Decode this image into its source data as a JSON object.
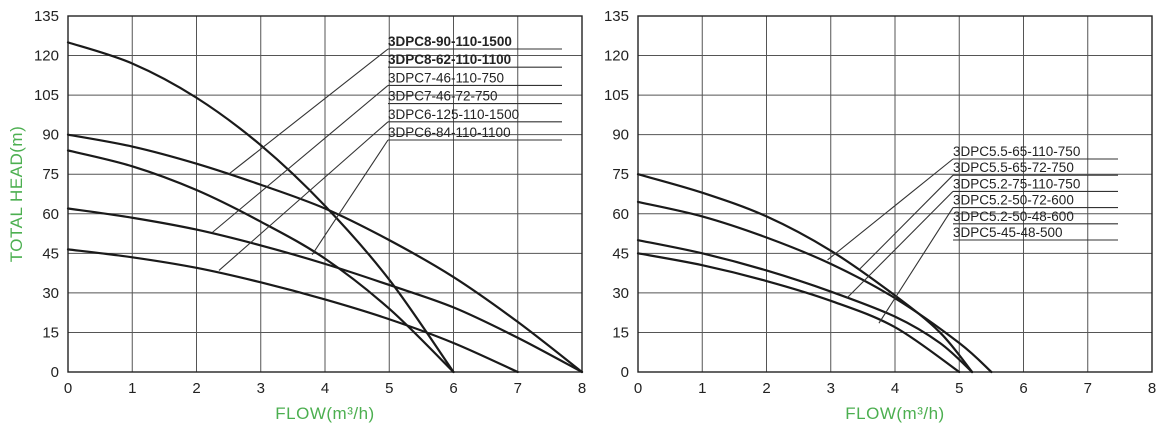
{
  "colors": {
    "axis_title": "#4caf50",
    "curve": "#1a1a1a",
    "grid": "#555555",
    "leader": "#333333"
  },
  "chart_data": [
    {
      "type": "line",
      "xlabel": "FLOW(m³/h)",
      "ylabel": "TOTAL HEAD(m)",
      "xlim": [
        0,
        8
      ],
      "ylim": [
        0,
        135
      ],
      "x_ticks": [
        "0",
        "1",
        "2",
        "3",
        "4",
        "5",
        "6",
        "7",
        "8"
      ],
      "y_ticks": [
        "0",
        "15",
        "30",
        "45",
        "60",
        "75",
        "90",
        "105",
        "120",
        "135"
      ],
      "grid": true,
      "series": [
        {
          "name": "3DPC8-90-110-1500",
          "points": [
            [
              0,
              125
            ],
            [
              1,
              117
            ],
            [
              2,
              104
            ],
            [
              3,
              86
            ],
            [
              4,
              63
            ],
            [
              5,
              35
            ],
            [
              6,
              0
            ]
          ],
          "leader_at": [
            2.5,
            75
          ],
          "bold": true
        },
        {
          "name": "3DPC8-62-110-1100",
          "points": [
            [
              0,
              90
            ],
            [
              1,
              85.5
            ],
            [
              2,
              79
            ],
            [
              3,
              71
            ],
            [
              4,
              62
            ],
            [
              5,
              50
            ],
            [
              6,
              36
            ],
            [
              7,
              19
            ],
            [
              8,
              0
            ]
          ],
          "leader_at": null,
          "bold": true
        },
        {
          "name": "3DPC7-46-110-750",
          "points": [
            [
              0,
              84
            ],
            [
              1,
              78
            ],
            [
              2,
              69
            ],
            [
              3,
              57
            ],
            [
              4,
              43
            ],
            [
              5,
              24
            ],
            [
              6,
              0
            ]
          ],
          "leader_at": [
            2.25,
            53
          ],
          "bold": false
        },
        {
          "name": "3DPC7-46-72-750",
          "points": [
            [
              0,
              62
            ],
            [
              1,
              58.5
            ],
            [
              2,
              54
            ],
            [
              3,
              48
            ],
            [
              4,
              41
            ],
            [
              5,
              33
            ],
            [
              6,
              24.5
            ],
            [
              7,
              13
            ],
            [
              8,
              0
            ]
          ],
          "leader_at": null,
          "bold": false
        },
        {
          "name": "3DPC6-125-110-1500",
          "points": [
            [
              0,
              46.5
            ],
            [
              1,
              43.5
            ],
            [
              2,
              39.5
            ],
            [
              3,
              34
            ],
            [
              4,
              27.5
            ],
            [
              5,
              20
            ],
            [
              6,
              11
            ],
            [
              7,
              0
            ]
          ],
          "leader_at": [
            2.35,
            38.5
          ],
          "bold": false
        },
        {
          "name": "3DPC6-84-110-1100",
          "points": [],
          "leader_at": [
            3.8,
            44.5
          ],
          "bold": false
        }
      ]
    },
    {
      "type": "line",
      "xlabel": "FLOW(m³/h)",
      "ylabel": "",
      "xlim": [
        0,
        8
      ],
      "ylim": [
        0,
        135
      ],
      "x_ticks": [
        "0",
        "1",
        "2",
        "3",
        "4",
        "5",
        "6",
        "7",
        "8"
      ],
      "y_ticks": [
        "0",
        "15",
        "30",
        "45",
        "60",
        "75",
        "90",
        "105",
        "120",
        "135"
      ],
      "grid": true,
      "series": [
        {
          "name": "3DPC5.5-65-110-750",
          "points": [
            [
              0,
              75
            ],
            [
              1,
              68
            ],
            [
              2,
              59
            ],
            [
              3,
              46
            ],
            [
              4,
              29
            ],
            [
              4.7,
              15
            ],
            [
              5.2,
              0
            ]
          ],
          "leader_at": [
            2.95,
            42.5
          ],
          "bold": false
        },
        {
          "name": "3DPC5.5-65-72-750",
          "points": [
            [
              0,
              64.5
            ],
            [
              1,
              59
            ],
            [
              2,
              51
            ],
            [
              3,
              41
            ],
            [
              4,
              28
            ],
            [
              5,
              11
            ],
            [
              5.5,
              0
            ]
          ],
          "leader_at": [
            3.45,
            39
          ],
          "bold": false
        },
        {
          "name": "3DPC5.2-75-110-750",
          "points": [
            [
              0,
              50
            ],
            [
              1,
              45
            ],
            [
              2,
              38.5
            ],
            [
              3,
              30.5
            ],
            [
              4,
              21
            ],
            [
              4.7,
              11
            ],
            [
              5.2,
              0
            ]
          ],
          "leader_at": [
            3.25,
            28
          ],
          "bold": false
        },
        {
          "name": "3DPC5.2-50-72-600",
          "points": [
            [
              0,
              45
            ],
            [
              1,
              40.5
            ],
            [
              2,
              34.5
            ],
            [
              3,
              27
            ],
            [
              4,
              17
            ],
            [
              5,
              0
            ]
          ],
          "leader_at": [
            3.75,
            18.5
          ],
          "bold": false
        },
        {
          "name": "3DPC5.2-50-48-600",
          "points": [],
          "leader_at": null,
          "bold": false
        },
        {
          "name": "3DPC5-45-48-500",
          "points": [],
          "leader_at": null,
          "bold": false
        }
      ]
    }
  ]
}
